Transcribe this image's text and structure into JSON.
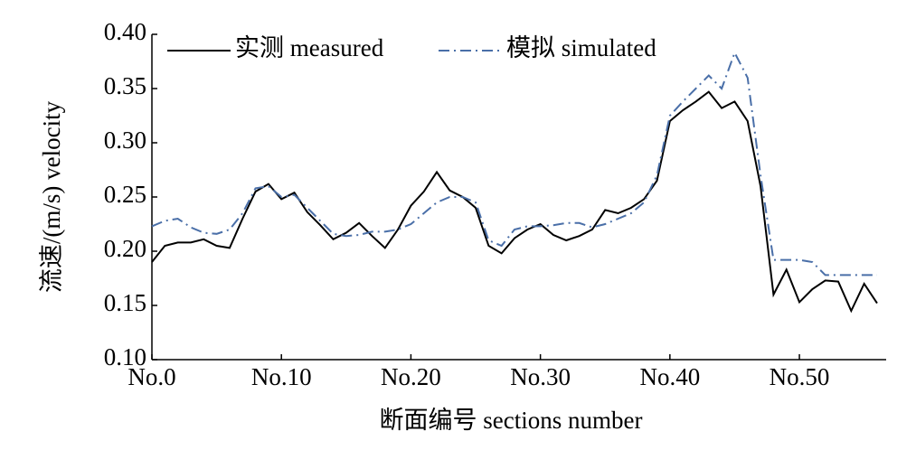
{
  "chart_data": {
    "type": "line",
    "xlabel": "断面编号 sections number",
    "ylabel": "流速/(m/s) velocity",
    "x": [
      0,
      1,
      2,
      3,
      4,
      5,
      6,
      7,
      8,
      9,
      10,
      11,
      12,
      13,
      14,
      15,
      16,
      17,
      18,
      19,
      20,
      21,
      22,
      23,
      24,
      25,
      26,
      27,
      28,
      29,
      30,
      31,
      32,
      33,
      34,
      35,
      36,
      37,
      38,
      39,
      40,
      41,
      42,
      43,
      44,
      45,
      46,
      47,
      48,
      49,
      50,
      51,
      52,
      53,
      54,
      55,
      56
    ],
    "series": [
      {
        "name": "实测 measured",
        "color": "#000000",
        "dash": "solid",
        "values": [
          0.19,
          0.205,
          0.208,
          0.208,
          0.211,
          0.205,
          0.203,
          0.23,
          0.255,
          0.262,
          0.248,
          0.254,
          0.236,
          0.224,
          0.211,
          0.217,
          0.226,
          0.214,
          0.203,
          0.22,
          0.242,
          0.255,
          0.273,
          0.256,
          0.25,
          0.24,
          0.205,
          0.198,
          0.212,
          0.22,
          0.225,
          0.215,
          0.21,
          0.214,
          0.22,
          0.238,
          0.235,
          0.24,
          0.248,
          0.265,
          0.32,
          0.33,
          0.338,
          0.347,
          0.332,
          0.338,
          0.32,
          0.26,
          0.16,
          0.183,
          0.153,
          0.165,
          0.173,
          0.172,
          0.145,
          0.17,
          0.152
        ]
      },
      {
        "name": "模拟 simulated",
        "color": "#4a6fa8",
        "dash": "dashdot",
        "values": [
          0.223,
          0.228,
          0.23,
          0.222,
          0.217,
          0.216,
          0.22,
          0.235,
          0.258,
          0.26,
          0.25,
          0.252,
          0.24,
          0.228,
          0.216,
          0.214,
          0.215,
          0.218,
          0.218,
          0.22,
          0.225,
          0.235,
          0.245,
          0.25,
          0.25,
          0.245,
          0.21,
          0.205,
          0.22,
          0.223,
          0.223,
          0.224,
          0.226,
          0.226,
          0.222,
          0.225,
          0.23,
          0.235,
          0.245,
          0.27,
          0.325,
          0.338,
          0.35,
          0.362,
          0.35,
          0.383,
          0.36,
          0.27,
          0.192,
          0.192,
          0.192,
          0.19,
          0.178,
          0.178,
          0.178,
          0.178,
          0.178
        ]
      }
    ],
    "xlim": [
      0,
      56.7
    ],
    "xticks": [
      {
        "value": 0,
        "label": "No.0"
      },
      {
        "value": 10,
        "label": "No.10"
      },
      {
        "value": 20,
        "label": "No.20"
      },
      {
        "value": 30,
        "label": "No.30"
      },
      {
        "value": 40,
        "label": "No.40"
      },
      {
        "value": 50,
        "label": "No.50"
      }
    ],
    "ylim": [
      0.1,
      0.4
    ],
    "yticks": [
      {
        "value": 0.1,
        "label": "0.10"
      },
      {
        "value": 0.15,
        "label": "0.15"
      },
      {
        "value": 0.2,
        "label": "0.20"
      },
      {
        "value": 0.25,
        "label": "0.25"
      },
      {
        "value": 0.3,
        "label": "0.30"
      },
      {
        "value": 0.35,
        "label": "0.35"
      },
      {
        "value": 0.4,
        "label": "0.40"
      }
    ],
    "legend": "top"
  }
}
